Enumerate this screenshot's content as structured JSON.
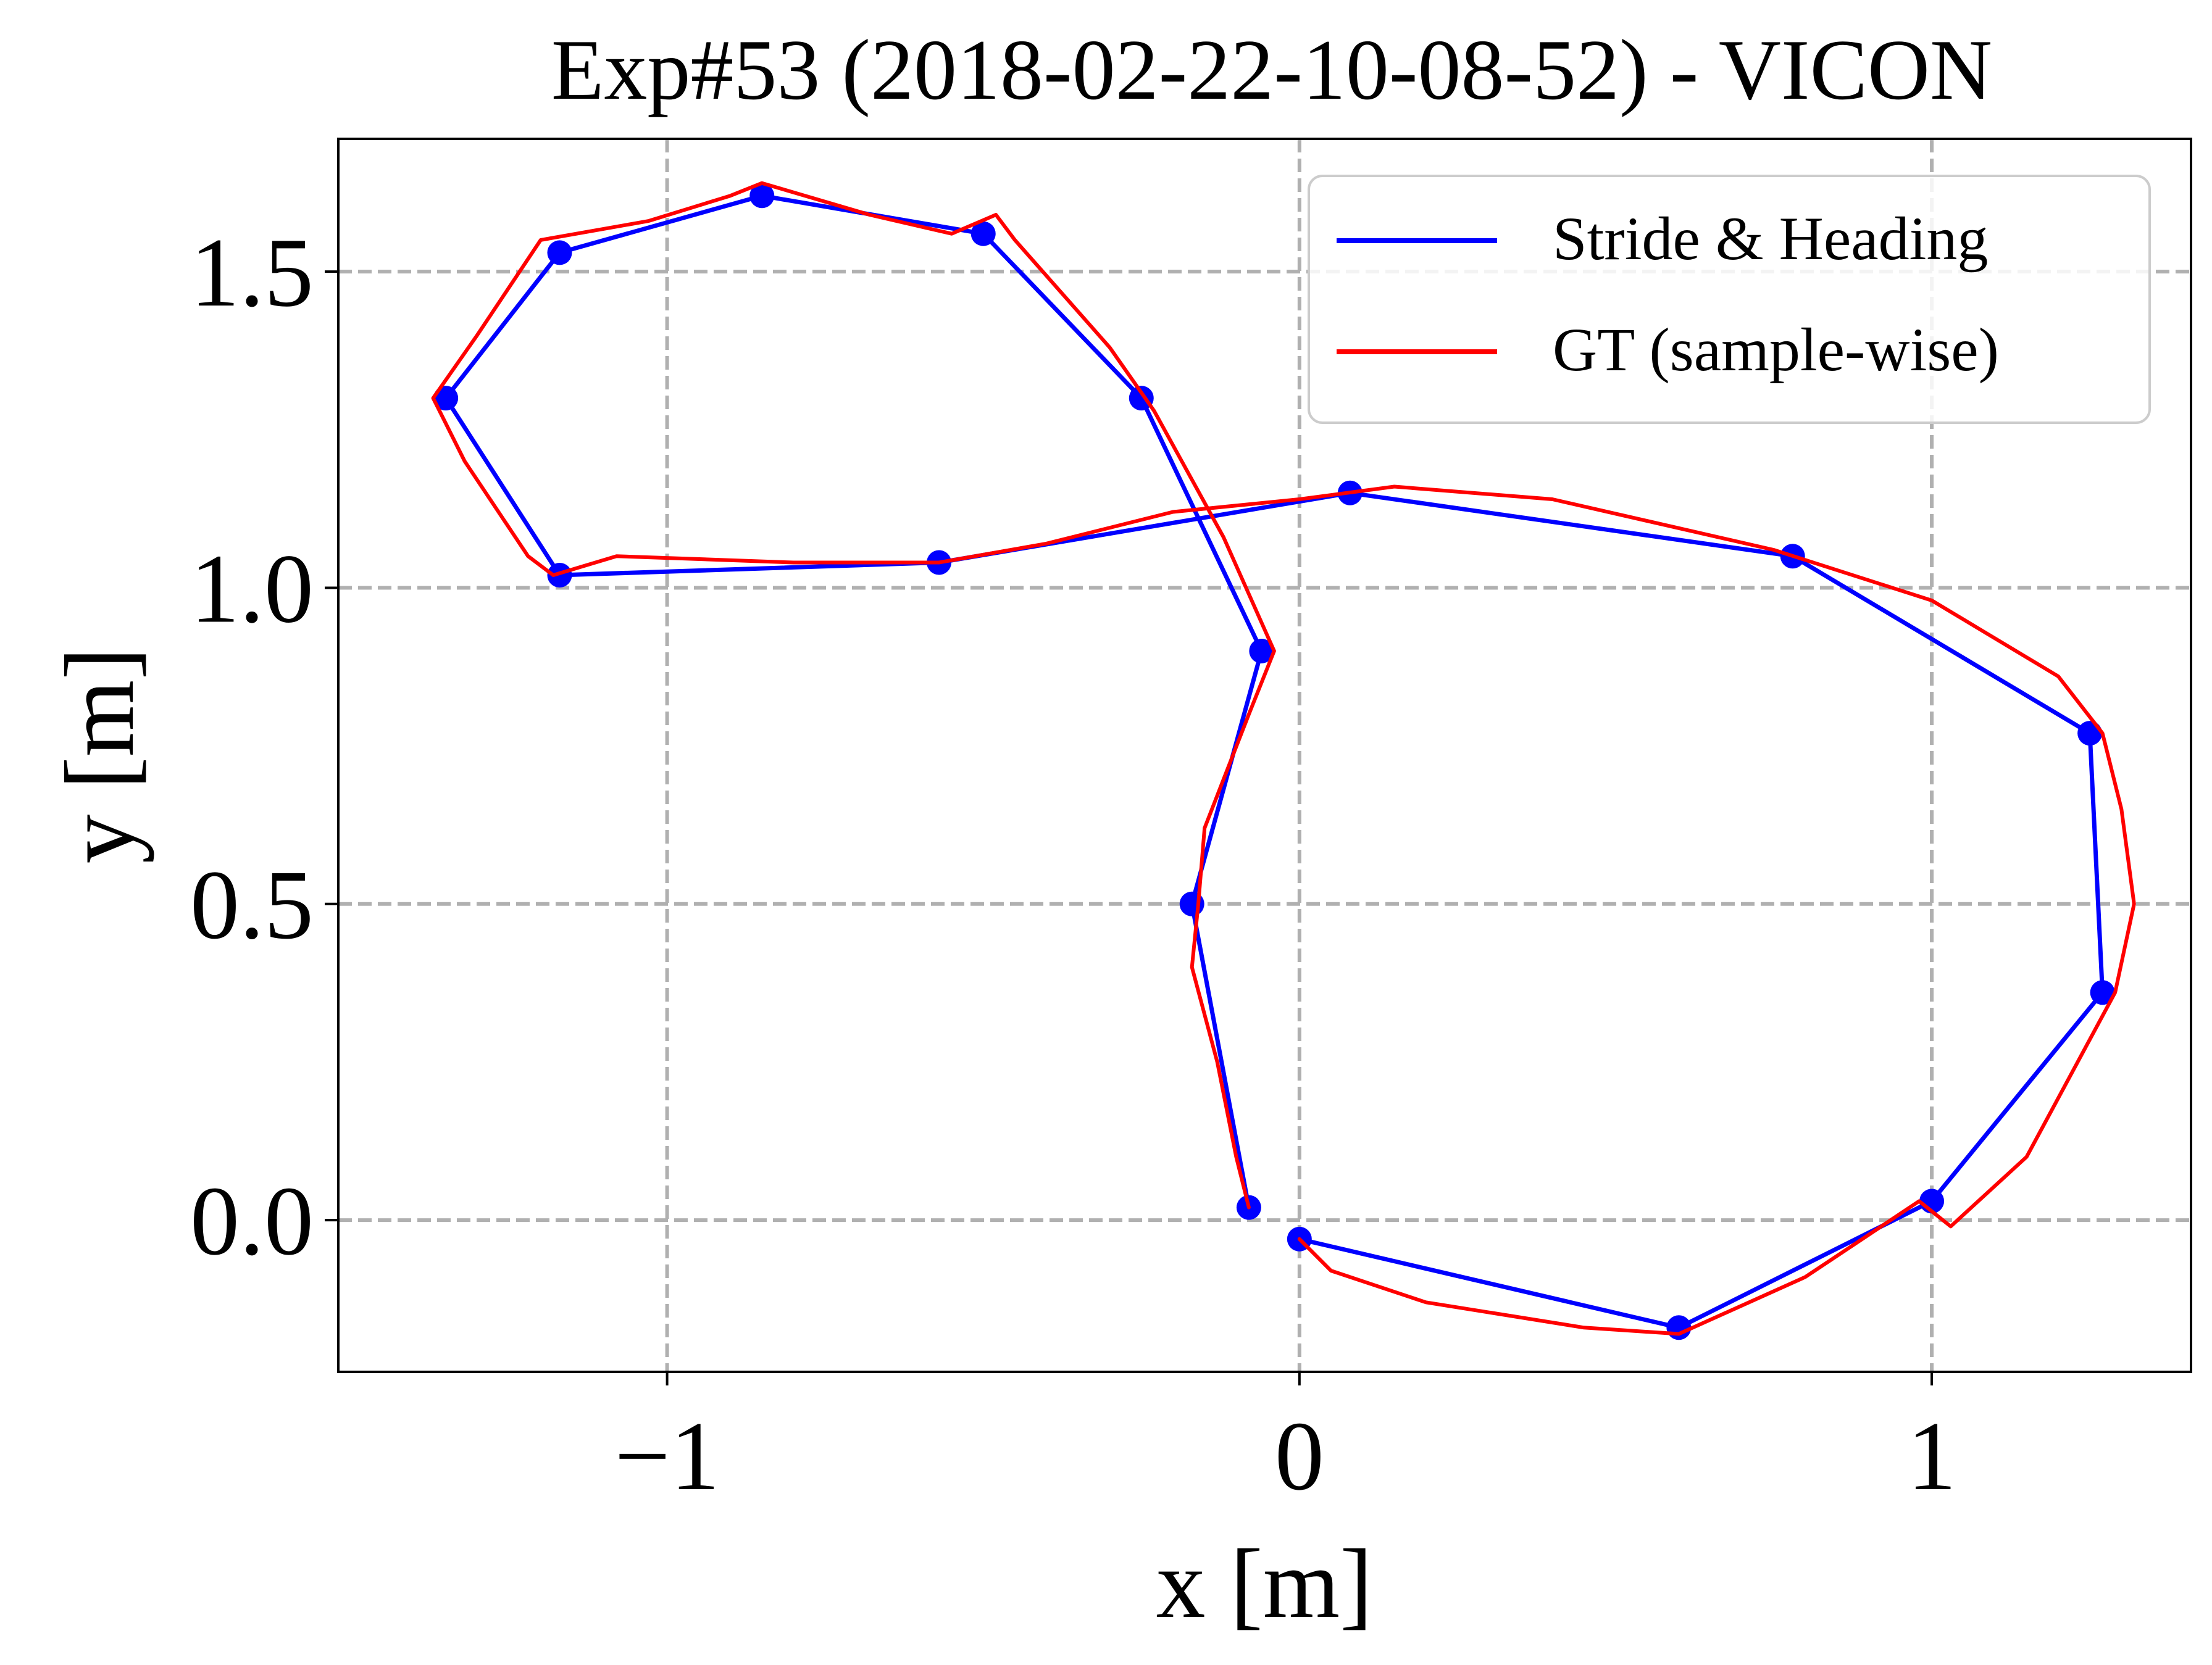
{
  "chart_data": {
    "type": "line",
    "title": "Exp#53 (2018-02-22-10-08-52) - VICON",
    "xlabel": "x [m]",
    "ylabel": "y [m]",
    "xlim": [
      -1.52,
      1.41
    ],
    "ylim": [
      -0.24,
      1.71
    ],
    "xticks": [
      -1,
      0,
      1
    ],
    "xtick_labels": [
      "−1",
      "0",
      "1"
    ],
    "yticks": [
      0.0,
      0.5,
      1.0,
      1.5
    ],
    "ytick_labels": [
      "0.0",
      "0.5",
      "1.0",
      "1.5"
    ],
    "grid": true,
    "legend_position": "upper-right",
    "series": [
      {
        "name": "Stride & Heading",
        "color": "#0000ff",
        "markers": true,
        "points": [
          [
            -0.08,
            0.02
          ],
          [
            -0.17,
            0.5
          ],
          [
            -0.06,
            0.9
          ],
          [
            -0.25,
            1.3
          ],
          [
            -0.5,
            1.56
          ],
          [
            -0.85,
            1.62
          ],
          [
            -1.17,
            1.53
          ],
          [
            -1.35,
            1.3
          ],
          [
            -1.17,
            1.02
          ],
          [
            -0.57,
            1.04
          ],
          [
            0.08,
            1.15
          ],
          [
            0.78,
            1.05
          ],
          [
            1.25,
            0.77
          ],
          [
            1.27,
            0.36
          ],
          [
            1.0,
            0.03
          ],
          [
            0.6,
            -0.17
          ],
          [
            0.0,
            -0.03
          ]
        ]
      },
      {
        "name": "GT (sample-wise)",
        "color": "#ff0000",
        "markers": false,
        "points": [
          [
            -0.08,
            0.02
          ],
          [
            -0.1,
            0.1
          ],
          [
            -0.13,
            0.25
          ],
          [
            -0.17,
            0.4
          ],
          [
            -0.16,
            0.5
          ],
          [
            -0.15,
            0.62
          ],
          [
            -0.08,
            0.8
          ],
          [
            -0.04,
            0.9
          ],
          [
            -0.12,
            1.08
          ],
          [
            -0.23,
            1.28
          ],
          [
            -0.3,
            1.38
          ],
          [
            -0.45,
            1.55
          ],
          [
            -0.48,
            1.59
          ],
          [
            -0.55,
            1.56
          ],
          [
            -0.68,
            1.59
          ],
          [
            -0.85,
            1.64
          ],
          [
            -0.9,
            1.62
          ],
          [
            -1.03,
            1.58
          ],
          [
            -1.2,
            1.55
          ],
          [
            -1.3,
            1.4
          ],
          [
            -1.37,
            1.3
          ],
          [
            -1.32,
            1.2
          ],
          [
            -1.22,
            1.05
          ],
          [
            -1.18,
            1.02
          ],
          [
            -1.08,
            1.05
          ],
          [
            -0.8,
            1.04
          ],
          [
            -0.57,
            1.04
          ],
          [
            -0.4,
            1.07
          ],
          [
            -0.2,
            1.12
          ],
          [
            0.0,
            1.14
          ],
          [
            0.15,
            1.16
          ],
          [
            0.4,
            1.14
          ],
          [
            0.75,
            1.06
          ],
          [
            1.0,
            0.98
          ],
          [
            1.2,
            0.86
          ],
          [
            1.27,
            0.77
          ],
          [
            1.3,
            0.65
          ],
          [
            1.32,
            0.5
          ],
          [
            1.29,
            0.36
          ],
          [
            1.15,
            0.1
          ],
          [
            1.03,
            -0.01
          ],
          [
            0.98,
            0.03
          ],
          [
            0.8,
            -0.09
          ],
          [
            0.6,
            -0.18
          ],
          [
            0.45,
            -0.17
          ],
          [
            0.2,
            -0.13
          ],
          [
            0.05,
            -0.08
          ],
          [
            0.0,
            -0.03
          ]
        ]
      }
    ]
  }
}
